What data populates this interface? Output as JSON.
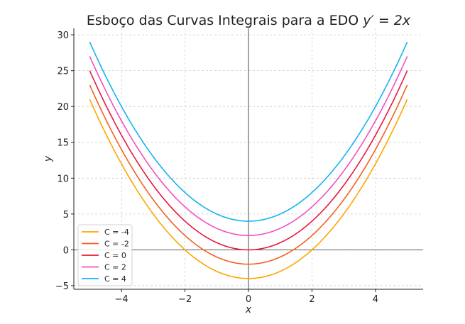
{
  "chart_data": {
    "type": "line",
    "title": "Esboço das Curvas Integrais para a EDO ",
    "title_math": "y′ = 2x",
    "xlabel": "x",
    "ylabel": "y",
    "xlim": [
      -5.5,
      5.5
    ],
    "ylim": [
      -5.5,
      30.9
    ],
    "xticks": [
      -4,
      -2,
      0,
      2,
      4
    ],
    "yticks": [
      -5,
      0,
      5,
      10,
      15,
      20,
      25,
      30
    ],
    "x_domain": [
      -5,
      5
    ],
    "function": "y = x^2 + C",
    "grid": true,
    "grid_style": "dashed",
    "reference_lines": {
      "x": 0,
      "y": 0
    },
    "legend_placement": "lower-left",
    "series": [
      {
        "name": "C = -4",
        "C": -4,
        "color": "#ffa500"
      },
      {
        "name": "C = -2",
        "C": -2,
        "color": "#f2601e"
      },
      {
        "name": "C = 0",
        "C": 0,
        "color": "#e6193c"
      },
      {
        "name": "C = 2",
        "C": 2,
        "color": "#f24fbf"
      },
      {
        "name": "C = 4",
        "C": 4,
        "color": "#12b4f2"
      }
    ]
  }
}
